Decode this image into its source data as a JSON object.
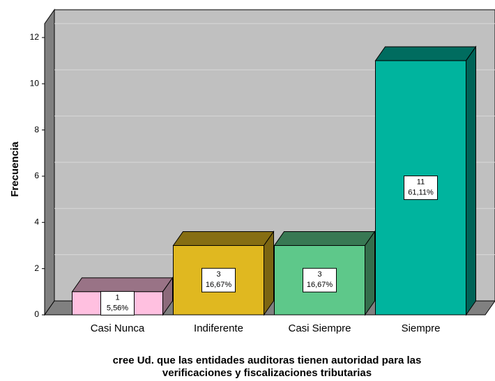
{
  "chart_data": {
    "type": "bar3d",
    "y_label": "Frecuencia",
    "x_label": [
      "cree Ud. que las entidades auditoras tienen autoridad para las",
      "verificaciones y fiscalizaciones tributarias"
    ],
    "categories": [
      "Casi Nunca",
      "Indiferente",
      "Casi Siempre",
      "Siempre"
    ],
    "values": [
      1,
      3,
      3,
      11
    ],
    "percentages": [
      5.56,
      16.67,
      16.67,
      61.11
    ],
    "percentage_labels": [
      "5,56%",
      "16,67%",
      "16,67%",
      "61,11%"
    ],
    "colors": [
      "#ffc0e0",
      "#e0b820",
      "#5ec88a",
      "#00b49e"
    ],
    "ylim": [
      0,
      12.6
    ],
    "yticks": [
      0,
      2,
      4,
      6,
      8,
      10,
      12
    ],
    "grid": true
  }
}
